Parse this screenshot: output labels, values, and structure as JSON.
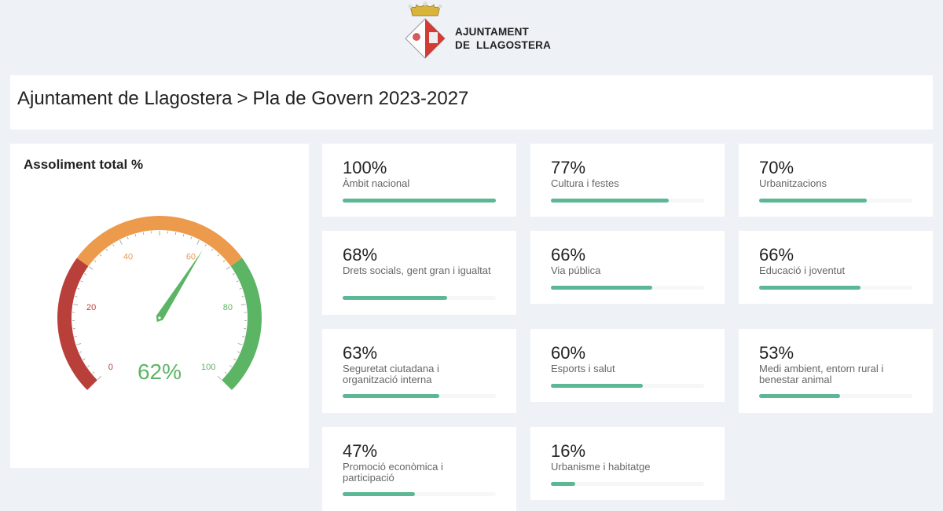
{
  "logo": {
    "line1": "AJUNTAMENT",
    "line2": "DE  LLAGOSTERA",
    "icon": "coat-of-arms-icon"
  },
  "header": {
    "breadcrumb_root": "Ajuntament de Llagostera",
    "separator": ">",
    "breadcrumb_current": "Pla de Govern 2023-2027"
  },
  "gauge": {
    "title": "Assoliment total %",
    "value": 62,
    "value_label": "62%",
    "ticks": [
      "0",
      "20",
      "40",
      "60",
      "80",
      "100"
    ],
    "bands": [
      {
        "from": 0,
        "to": 30,
        "color": "#b83f3a"
      },
      {
        "from": 30,
        "to": 70,
        "color": "#ec9a4c"
      },
      {
        "from": 70,
        "to": 100,
        "color": "#5cb565"
      }
    ],
    "value_color": "#5cb565"
  },
  "bar_color": "#5bb794",
  "cards": [
    {
      "pct": "100%",
      "value": 100,
      "label": "Àmbit nacional"
    },
    {
      "pct": "77%",
      "value": 77,
      "label": "Cultura i festes"
    },
    {
      "pct": "70%",
      "value": 70,
      "label": "Urbanitzacions"
    },
    {
      "pct": "68%",
      "value": 68,
      "label": "Drets socials, gent gran i igualtat"
    },
    {
      "pct": "66%",
      "value": 66,
      "label": "Via pública"
    },
    {
      "pct": "66%",
      "value": 66,
      "label": "Educació i joventut"
    },
    {
      "pct": "63%",
      "value": 63,
      "label": "Seguretat ciutadana i organització interna"
    },
    {
      "pct": "60%",
      "value": 60,
      "label": "Esports i salut"
    },
    {
      "pct": "53%",
      "value": 53,
      "label": "Medi ambient, entorn rural i benestar animal"
    },
    {
      "pct": "47%",
      "value": 47,
      "label": "Promoció econòmica i participació"
    },
    {
      "pct": "16%",
      "value": 16,
      "label": "Urbanisme i habitatge"
    }
  ]
}
